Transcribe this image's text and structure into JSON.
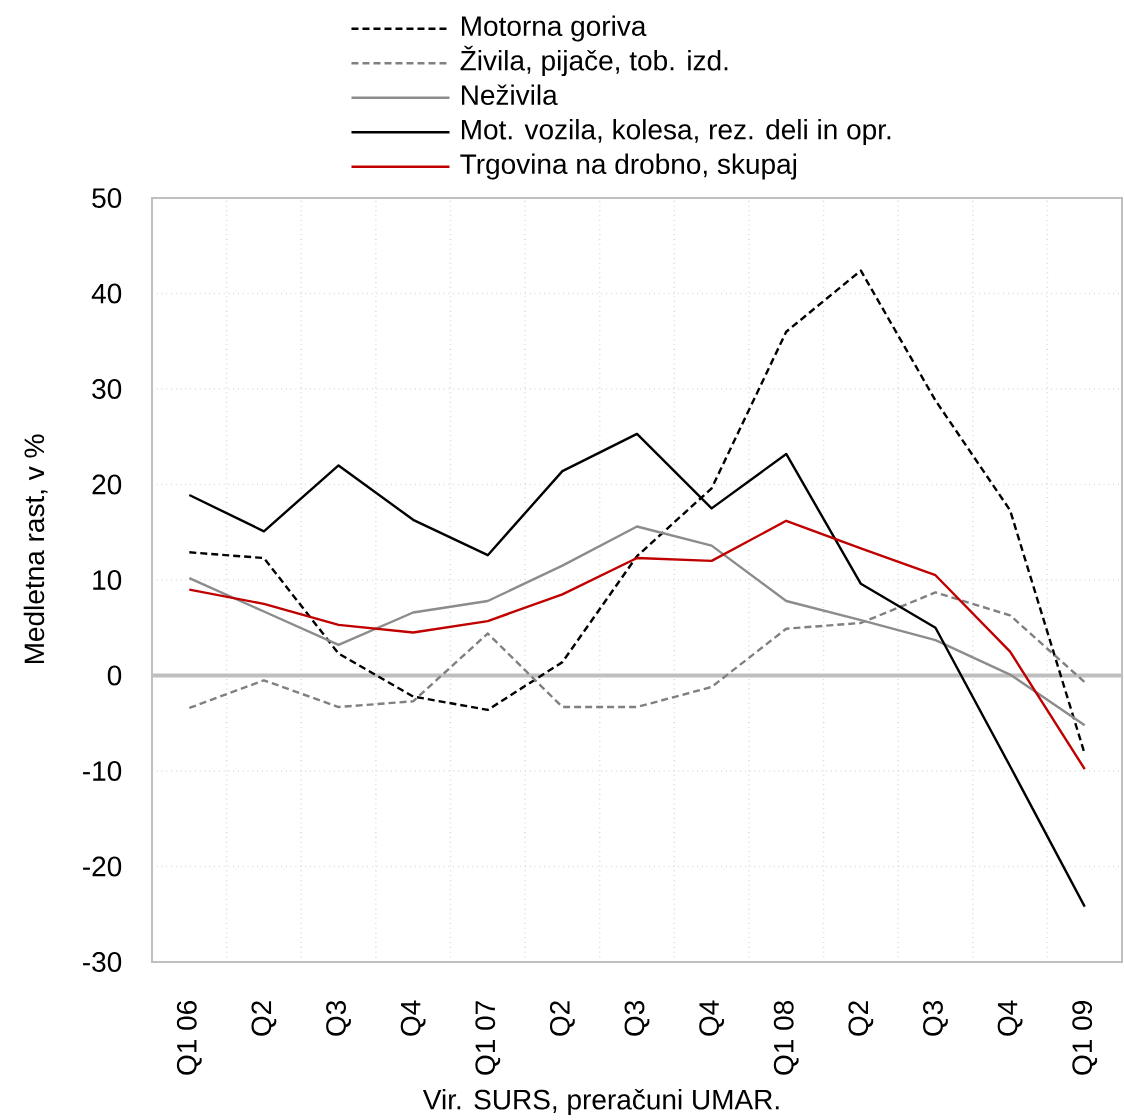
{
  "chart_data": {
    "type": "line",
    "ylabel": "Medletna rast, v %",
    "categories": [
      "Q1 06",
      "Q2",
      "Q3",
      "Q4",
      "Q1 07",
      "Q2",
      "Q3",
      "Q4",
      "Q1 08",
      "Q2",
      "Q3",
      "Q4",
      "Q1 09"
    ],
    "series": [
      {
        "name": "Motorna goriva",
        "color": "#000000",
        "line_style": "dashed",
        "values": [
          12.9,
          12.3,
          2.3,
          -2.2,
          -3.6,
          1.4,
          12.5,
          19.6,
          36.0,
          42.4,
          28.8,
          17.3,
          -8.2
        ]
      },
      {
        "name": "Živila, pijače, tob. izd.",
        "color": "#808080",
        "line_style": "dashed",
        "values": [
          -3.4,
          -0.5,
          -3.3,
          -2.7,
          4.4,
          -3.3,
          -3.3,
          -1.2,
          4.9,
          5.5,
          8.7,
          6.3,
          -0.7
        ]
      },
      {
        "name": "Neživila",
        "color": "#8c8c8c",
        "line_style": "solid",
        "values": [
          10.2,
          6.7,
          3.2,
          6.6,
          7.8,
          11.5,
          15.6,
          13.6,
          7.8,
          5.8,
          3.7,
          0.1,
          -5.2
        ]
      },
      {
        "name": "Mot. vozila, kolesa, rez. deli in opr.",
        "color": "#000000",
        "line_style": "solid",
        "values": [
          18.9,
          15.1,
          22.0,
          16.3,
          12.6,
          21.4,
          25.3,
          17.5,
          23.2,
          9.6,
          5.0,
          -9.5,
          -24.2
        ]
      },
      {
        "name": "Trgovina na drobno, skupaj",
        "color": "#c00000",
        "line_style": "solid",
        "values": [
          9.0,
          7.5,
          5.3,
          4.5,
          5.7,
          8.5,
          12.3,
          12.0,
          16.2,
          13.3,
          10.5,
          2.5,
          -9.8
        ]
      }
    ],
    "ylim": [
      -30,
      50
    ],
    "yticks": [
      -30,
      -20,
      -10,
      0,
      10,
      20,
      30,
      40,
      50
    ],
    "grid": true,
    "legend": "top",
    "ref_lines": [
      {
        "axis": "y",
        "value": 0,
        "color": "#bfbfbf"
      }
    ],
    "annotations": [
      "Vir. SURS, preračuni UMAR."
    ]
  }
}
